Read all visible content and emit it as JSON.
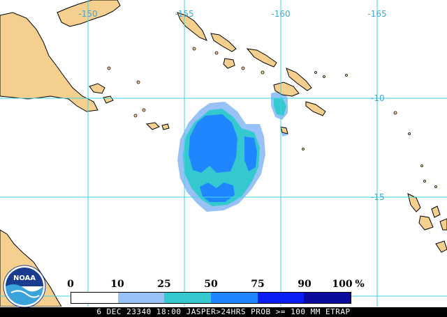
{
  "map": {
    "longitude_labels": [
      "-150",
      "-155",
      "-160",
      "-165"
    ],
    "latitude_labels": [
      "-10",
      "-15"
    ],
    "colors": {
      "ocean": "#ffffff",
      "land": "#f5cf8e",
      "coast": "#000000",
      "grid": "#3fd6e6",
      "label": "#3fa7d6"
    }
  },
  "legend": {
    "ticks": [
      "0",
      "10",
      "25",
      "50",
      "75",
      "90",
      "100"
    ],
    "unit": "%",
    "colors": [
      "#ffffff",
      "#98c2f5",
      "#33c9cf",
      "#1f86ff",
      "#0a1df5",
      "#0a0a9c"
    ]
  },
  "footer": {
    "text": "6 DEC 23340 18:00 JASPER>24HRS PROB >= 100 MM ETRAP"
  },
  "logo": {
    "text": "NOAA"
  }
}
